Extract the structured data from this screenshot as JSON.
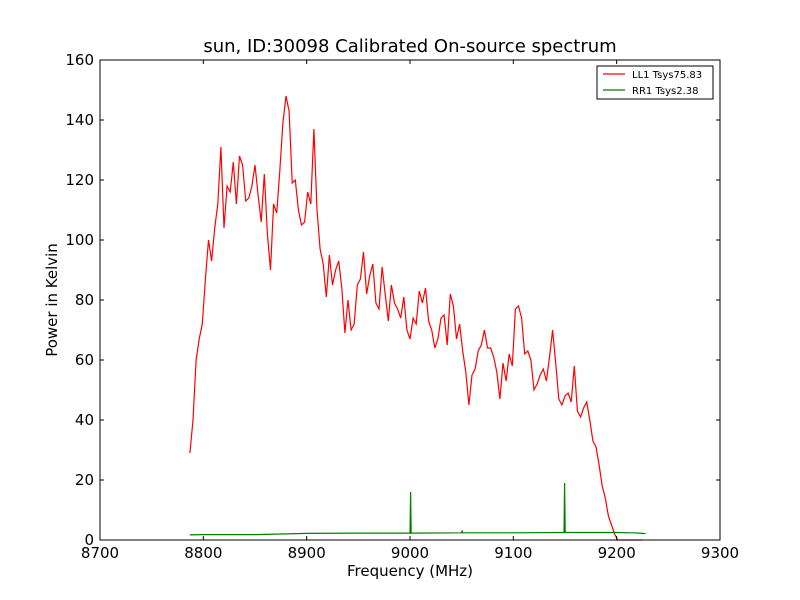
{
  "chart_data": {
    "type": "line",
    "title": "sun, ID:30098 Calibrated On-source spectrum",
    "xlabel": "Frequency (MHz)",
    "ylabel": "Power in Kelvin",
    "xlim": [
      8700,
      9300
    ],
    "ylim": [
      0,
      160
    ],
    "xticks": [
      8700,
      8800,
      8900,
      9000,
      9100,
      9200,
      9300
    ],
    "yticks": [
      0,
      20,
      40,
      60,
      80,
      100,
      120,
      140,
      160
    ],
    "grid": false,
    "legend_position": "top-right",
    "series": [
      {
        "name": "LL1 Tsys75.83",
        "color": "#ff0000",
        "x": [
          8787,
          8790,
          8793,
          8796,
          8799,
          8802,
          8805,
          8808,
          8811,
          8814,
          8817,
          8820,
          8823,
          8826,
          8829,
          8832,
          8835,
          8838,
          8841,
          8844,
          8847,
          8850,
          8853,
          8856,
          8859,
          8862,
          8865,
          8868,
          8871,
          8874,
          8877,
          8880,
          8883,
          8886,
          8889,
          8892,
          8895,
          8898,
          8901,
          8904,
          8907,
          8910,
          8913,
          8916,
          8919,
          8922,
          8925,
          8928,
          8931,
          8934,
          8937,
          8940,
          8943,
          8946,
          8949,
          8952,
          8955,
          8958,
          8961,
          8964,
          8967,
          8970,
          8973,
          8976,
          8979,
          8982,
          8985,
          8988,
          8991,
          8994,
          8997,
          9000,
          9003,
          9006,
          9009,
          9012,
          9015,
          9018,
          9021,
          9024,
          9027,
          9030,
          9033,
          9036,
          9039,
          9042,
          9045,
          9048,
          9051,
          9054,
          9057,
          9060,
          9063,
          9066,
          9069,
          9072,
          9075,
          9078,
          9081,
          9084,
          9087,
          9090,
          9093,
          9096,
          9099,
          9102,
          9105,
          9108,
          9111,
          9114,
          9117,
          9120,
          9123,
          9126,
          9129,
          9132,
          9135,
          9138,
          9141,
          9144,
          9147,
          9150,
          9153,
          9156,
          9159,
          9162,
          9165,
          9168,
          9171,
          9174,
          9177,
          9180,
          9183,
          9186,
          9189,
          9192,
          9195,
          9198,
          9201,
          9204,
          9207,
          9210,
          9213,
          9216,
          9219,
          9222,
          9225
        ],
        "y": [
          29,
          40,
          60,
          67,
          72,
          87,
          100,
          93,
          104,
          112,
          131,
          104,
          118,
          116,
          126,
          112,
          128,
          125,
          113,
          114,
          118,
          125,
          115,
          106,
          122,
          102,
          90,
          112,
          109,
          123,
          139,
          148,
          143,
          119,
          120,
          110,
          105,
          106,
          116,
          112,
          137,
          110,
          97,
          92,
          81,
          95,
          85,
          90,
          93,
          84,
          69,
          80,
          70,
          72,
          85,
          87,
          96,
          82,
          88,
          92,
          79,
          77,
          91,
          82,
          73,
          85,
          79,
          77,
          74,
          81,
          70,
          67,
          74,
          72,
          83,
          79,
          84,
          73,
          70,
          64,
          67,
          74,
          75,
          65,
          82,
          78,
          67,
          72,
          63,
          56,
          45,
          55,
          57,
          63,
          65,
          70,
          64,
          64,
          61,
          56,
          47,
          59,
          53,
          62,
          58,
          77,
          78,
          74,
          62,
          63,
          60,
          50,
          52,
          55,
          57,
          53,
          61,
          70,
          59,
          47,
          45,
          48,
          49,
          46,
          58,
          43,
          41,
          44,
          46,
          40,
          33,
          31,
          25,
          18,
          14,
          8,
          5,
          2,
          0,
          0,
          0,
          0,
          0,
          0,
          0,
          0,
          0
        ]
      },
      {
        "name": "RR1 Tsys2.38",
        "color": "#008000",
        "x": [
          8787,
          8800,
          8850,
          8900,
          8950,
          8999,
          9000,
          9000.6,
          9001.2,
          9002,
          9050,
          9050.5,
          9051,
          9100,
          9148,
          9149,
          9149.6,
          9150.2,
          9151,
          9200,
          9215,
          9222,
          9225,
          9228
        ],
        "y": [
          1.7,
          1.8,
          1.8,
          2.2,
          2.3,
          2.3,
          2.3,
          16,
          2.3,
          2.3,
          2.4,
          3.2,
          2.4,
          2.4,
          2.5,
          2.5,
          19,
          2.5,
          2.5,
          2.5,
          2.4,
          2.3,
          2.2,
          2.1
        ]
      }
    ]
  }
}
